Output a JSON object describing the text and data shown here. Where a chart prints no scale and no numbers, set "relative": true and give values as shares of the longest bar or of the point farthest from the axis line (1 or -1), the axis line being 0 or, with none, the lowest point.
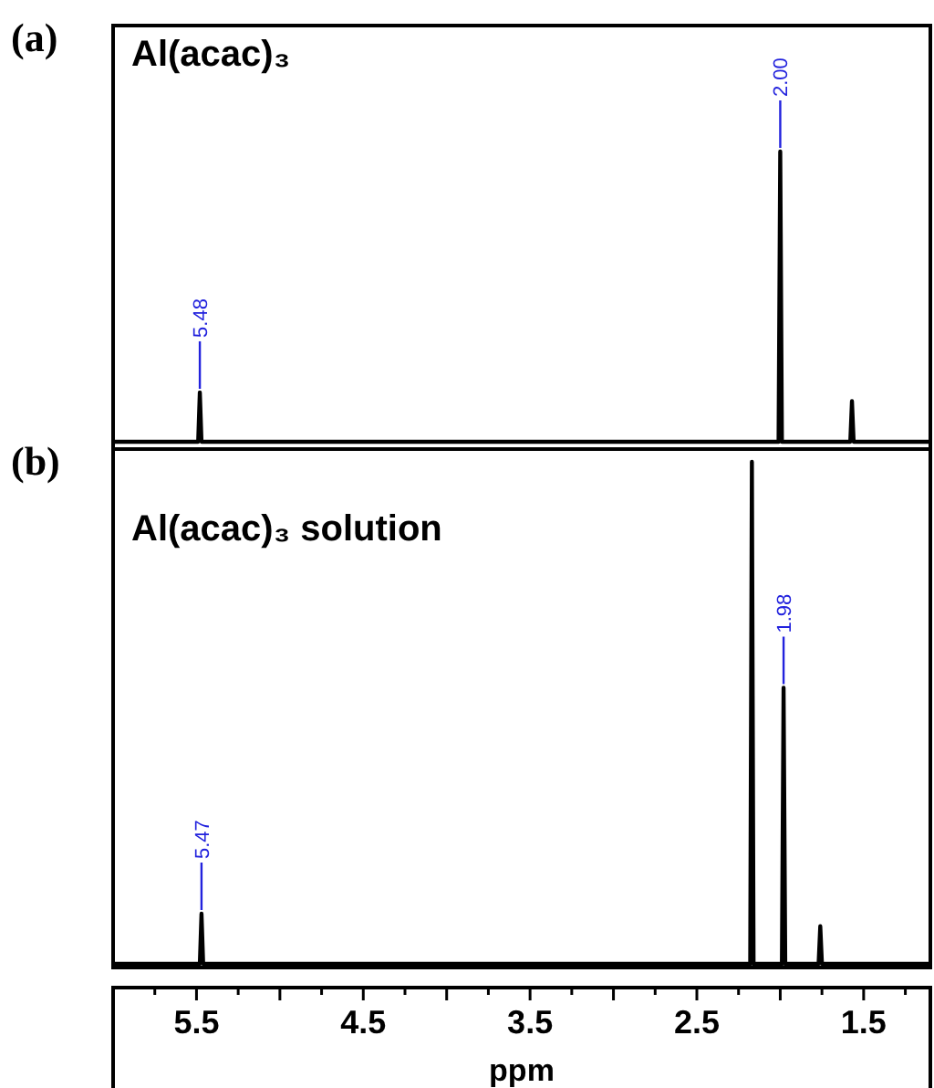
{
  "chart_data": [
    {
      "type": "line",
      "title": "Al(acac)₃",
      "relative": true,
      "xlim": [
        6.0,
        1.1
      ],
      "tick_labels": false,
      "line_style": "solid",
      "grid": false,
      "marker": "none",
      "series": [
        {
          "color": "#000000",
          "x": [
            6.0,
            5.49,
            5.48,
            5.47,
            2.01,
            2.0,
            1.99,
            1.58,
            1.57,
            1.56,
            1.1
          ],
          "values": [
            0,
            0,
            0.17,
            0,
            0,
            1,
            0,
            0,
            0.14,
            0,
            0
          ]
        }
      ],
      "annotations": [
        "(a)",
        {
          "text": "5.48",
          "x": 5.48,
          "y": 0.17
        },
        {
          "text": "2.00",
          "x": 2.0,
          "y": 1
        }
      ]
    },
    {
      "type": "line",
      "title": "Al(acac)₃ solution",
      "xlabel": "ppm",
      "relative": true,
      "xlim": [
        6.0,
        1.1
      ],
      "tick_labels": "x",
      "line_style": "solid",
      "grid": false,
      "marker": "none",
      "xticks": [
        5.5,
        4.5,
        3.5,
        2.5,
        1.5
      ],
      "series": [
        {
          "color": "#000000",
          "x": [
            6.0,
            5.48,
            5.47,
            5.46,
            2.18,
            2.17,
            2.16,
            1.99,
            1.98,
            1.97,
            1.77,
            1.76,
            1.75,
            1.1
          ],
          "values": [
            0,
            0,
            0.1,
            0,
            0,
            1,
            0,
            0,
            0.55,
            0,
            0,
            0.075,
            0,
            0
          ]
        }
      ],
      "annotations": [
        "(b)",
        {
          "text": "1.98",
          "x": 1.98,
          "y": 0.55
        },
        {
          "text": "5.47",
          "x": 5.47,
          "y": 0.1
        }
      ]
    }
  ]
}
